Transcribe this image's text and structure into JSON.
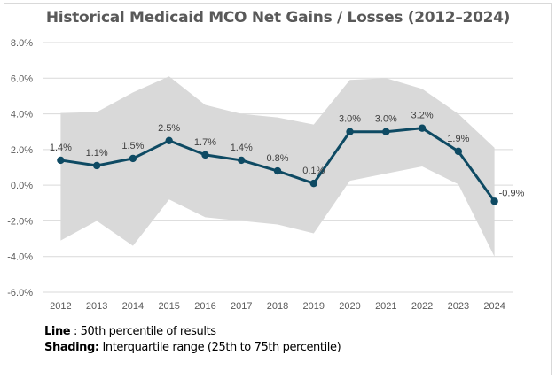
{
  "chart_data": {
    "type": "line",
    "title": "Historical Medicaid MCO Net Gains / Losses (2012–2024)",
    "xlabel": "",
    "ylabel": "",
    "ylim": [
      -6.0,
      8.0
    ],
    "yticks": [
      8.0,
      6.0,
      4.0,
      2.0,
      0.0,
      -2.0,
      -4.0,
      -6.0
    ],
    "ytick_labels": [
      "8.0%",
      "6.0%",
      "4.0%",
      "2.0%",
      "0.0%",
      "-2.0%",
      "-4.0%",
      "-6.0%"
    ],
    "grid": true,
    "categories": [
      "2012",
      "2013",
      "2014",
      "2015",
      "2016",
      "2017",
      "2018",
      "2019",
      "2020",
      "2021",
      "2022",
      "2023",
      "2024"
    ],
    "series": [
      {
        "name": "50th percentile",
        "kind": "line",
        "color": "#0e4a63",
        "values": [
          1.4,
          1.1,
          1.5,
          2.5,
          1.7,
          1.4,
          0.8,
          0.1,
          3.0,
          3.0,
          3.2,
          1.9,
          -0.9
        ],
        "labels": [
          "1.4%",
          "1.1%",
          "1.5%",
          "2.5%",
          "1.7%",
          "1.4%",
          "0.8%",
          "0.1%",
          "3.0%",
          "3.0%",
          "3.2%",
          "1.9%",
          "-0.9%"
        ]
      },
      {
        "name": "75th percentile",
        "kind": "band-upper",
        "color": "#d9d9d9",
        "values": [
          4.05,
          4.1,
          5.2,
          6.1,
          4.5,
          4.0,
          3.8,
          3.4,
          5.9,
          6.0,
          5.4,
          4.0,
          2.1
        ]
      },
      {
        "name": "25th percentile",
        "kind": "band-lower",
        "color": "#d9d9d9",
        "values": [
          -3.1,
          -2.0,
          -3.4,
          -0.8,
          -1.8,
          -2.0,
          -2.2,
          -2.7,
          0.25,
          0.65,
          1.05,
          0.05,
          -4.0
        ]
      }
    ],
    "notes": [
      {
        "bold": "Line",
        "text": " : 50th percentile of results"
      },
      {
        "bold": "Shading:",
        "text": " Interquartile range (25th to 75th percentile)"
      }
    ]
  }
}
